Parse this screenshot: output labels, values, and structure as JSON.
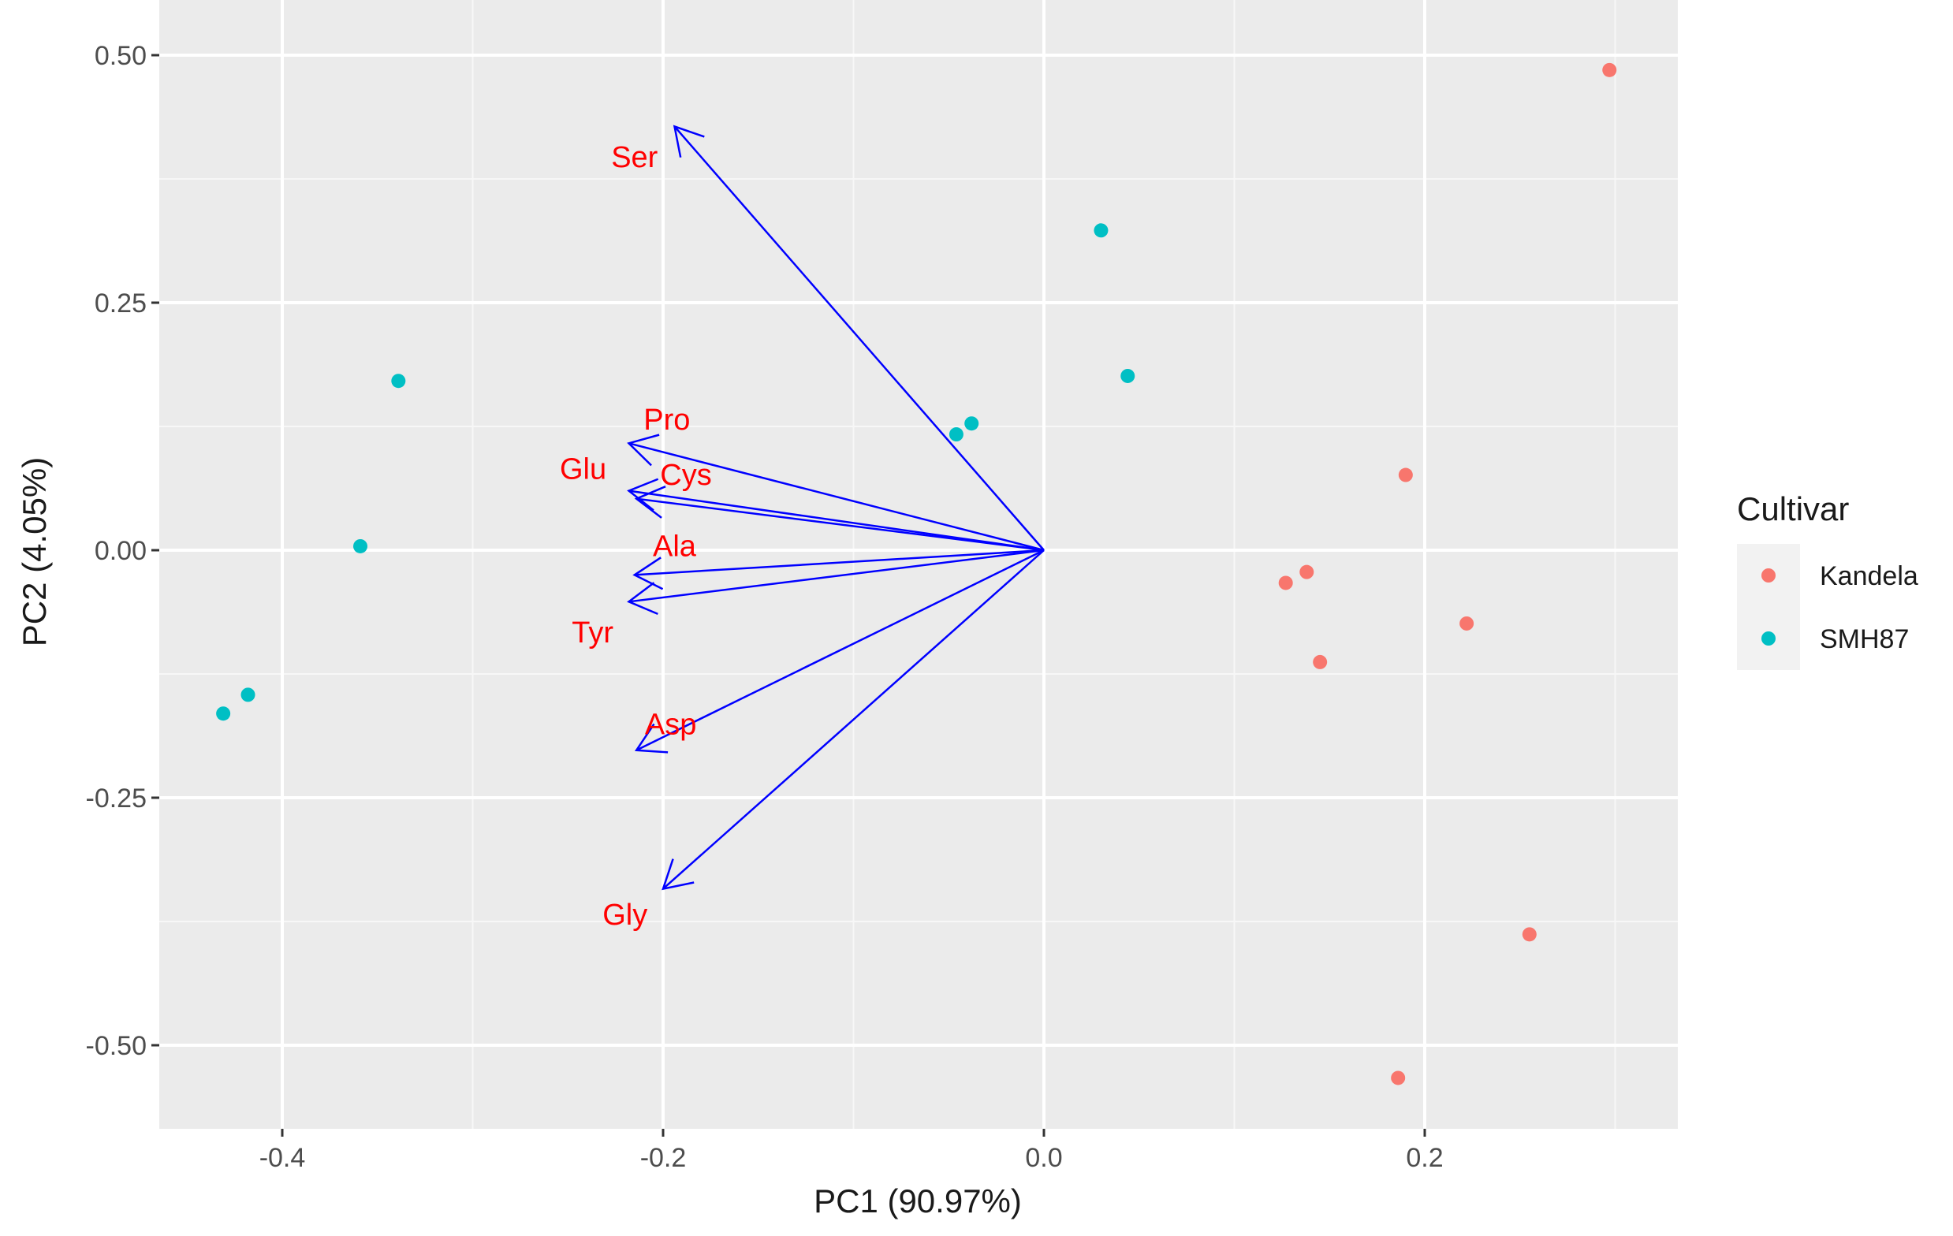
{
  "chart_data": {
    "type": "scatter",
    "subtype": "pca-biplot",
    "xlabel": "PC1 (90.97%)",
    "ylabel": "PC2 (4.05%)",
    "xlim": [
      -0.45,
      0.33
    ],
    "ylim": [
      -0.58,
      0.52
    ],
    "x_ticks": [
      -0.4,
      -0.2,
      0.0,
      0.2
    ],
    "x_tick_labels": [
      "-0.4",
      "-0.2",
      "0.0",
      "0.2"
    ],
    "y_ticks": [
      -0.5,
      -0.25,
      0.0,
      0.25,
      0.5
    ],
    "y_tick_labels": [
      "-0.50",
      "-0.25",
      "0.00",
      "0.25",
      "0.50"
    ],
    "grid": true,
    "legend": {
      "title": "Cultivar",
      "position": "right"
    },
    "series": [
      {
        "name": "Kandela",
        "color": "#F8766D",
        "points": [
          {
            "x": 0.297,
            "y": 0.485
          },
          {
            "x": 0.19,
            "y": 0.076
          },
          {
            "x": 0.127,
            "y": -0.033
          },
          {
            "x": 0.138,
            "y": -0.022
          },
          {
            "x": 0.222,
            "y": -0.074
          },
          {
            "x": 0.145,
            "y": -0.113
          },
          {
            "x": 0.255,
            "y": -0.388
          },
          {
            "x": 0.186,
            "y": -0.533
          }
        ]
      },
      {
        "name": "SMH87",
        "color": "#00BFC4",
        "points": [
          {
            "x": 0.03,
            "y": 0.323
          },
          {
            "x": 0.044,
            "y": 0.176
          },
          {
            "x": -0.038,
            "y": 0.128
          },
          {
            "x": -0.046,
            "y": 0.117
          },
          {
            "x": -0.339,
            "y": 0.171
          },
          {
            "x": -0.359,
            "y": 0.004
          },
          {
            "x": -0.418,
            "y": -0.146
          },
          {
            "x": -0.431,
            "y": -0.165
          }
        ]
      }
    ],
    "loadings": {
      "color": "#0000FF",
      "label_color": "#FF0000",
      "vectors": [
        {
          "name": "Ser",
          "x": -0.194,
          "y": 0.428,
          "label_x": -0.215,
          "label_y": 0.395
        },
        {
          "name": "Pro",
          "x": -0.218,
          "y": 0.108,
          "label_x": -0.198,
          "label_y": 0.13
        },
        {
          "name": "Glu",
          "x": -0.218,
          "y": 0.06,
          "label_x": -0.242,
          "label_y": 0.08
        },
        {
          "name": "Cys",
          "x": -0.214,
          "y": 0.052,
          "label_x": -0.188,
          "label_y": 0.074
        },
        {
          "name": "Ala",
          "x": -0.215,
          "y": -0.025,
          "label_x": -0.194,
          "label_y": 0.002
        },
        {
          "name": "Tyr",
          "x": -0.218,
          "y": -0.052,
          "label_x": -0.237,
          "label_y": -0.085
        },
        {
          "name": "Asp",
          "x": -0.214,
          "y": -0.202,
          "label_x": -0.196,
          "label_y": -0.178
        },
        {
          "name": "Gly",
          "x": -0.2,
          "y": -0.342,
          "label_x": -0.22,
          "label_y": -0.37
        }
      ]
    }
  }
}
